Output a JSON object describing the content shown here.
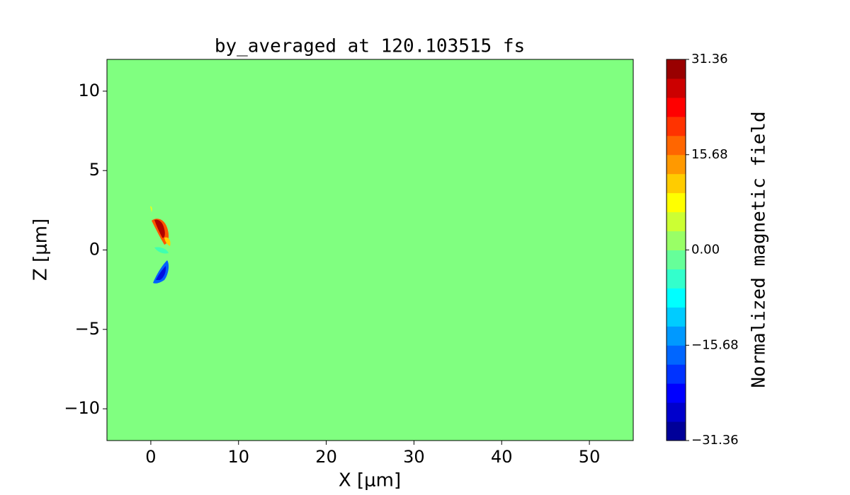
{
  "chart_data": {
    "type": "contour",
    "title": "by_averaged at 120.103515 fs",
    "xlabel": "X [μm]",
    "ylabel": "Z [μm]",
    "colorbar_label": "Normalized magnetic field",
    "colormap": "jet",
    "xlim": [
      -5,
      55
    ],
    "xticks": [
      0,
      10,
      20,
      30,
      40,
      50
    ],
    "ylim": [
      -12,
      12
    ],
    "yticks": [
      {
        "value": -10,
        "label": "−10"
      },
      {
        "value": -5,
        "label": "−5"
      },
      0,
      5,
      10
    ],
    "clim": [
      -31.36,
      31.36
    ],
    "cticks": [
      {
        "value": -31.36,
        "label": "−31.36"
      },
      {
        "value": -15.68,
        "label": "−15.68"
      },
      {
        "value": 0,
        "label": "0.00"
      },
      15.68,
      31.36
    ]
  }
}
